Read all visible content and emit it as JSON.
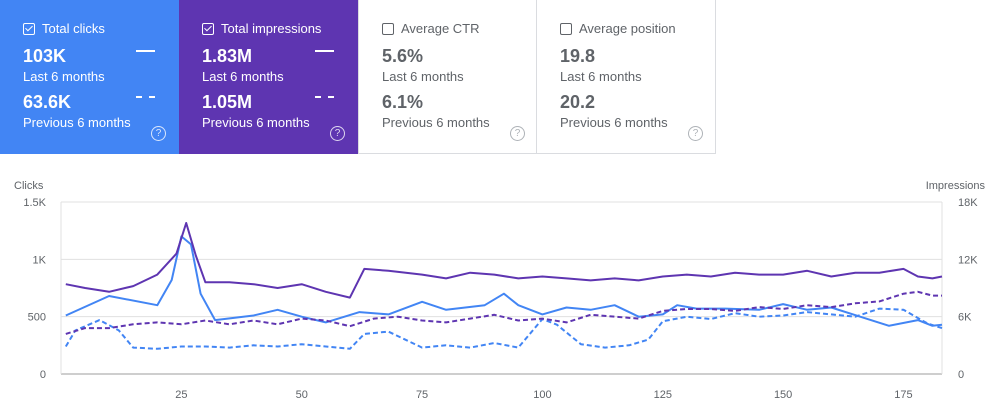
{
  "cards": [
    {
      "label": "Total clicks",
      "checked": true,
      "value1": "103K",
      "sub1": "Last 6 months",
      "value2": "63.6K",
      "sub2": "Previous 6 months",
      "help": "?"
    },
    {
      "label": "Total impressions",
      "checked": true,
      "value1": "1.83M",
      "sub1": "Last 6 months",
      "value2": "1.05M",
      "sub2": "Previous 6 months",
      "help": "?"
    },
    {
      "label": "Average CTR",
      "checked": false,
      "value1": "5.6%",
      "sub1": "Last 6 months",
      "value2": "6.1%",
      "sub2": "Previous 6 months",
      "help": "?"
    },
    {
      "label": "Average position",
      "checked": false,
      "value1": "19.8",
      "sub1": "Last 6 months",
      "value2": "20.2",
      "sub2": "Previous 6 months",
      "help": "?"
    }
  ],
  "colors": {
    "clicks": "#4285f4",
    "impressions": "#5e35b1",
    "grid": "#e0e0e0",
    "axis_text": "#5f6368"
  },
  "chart_data": {
    "type": "line",
    "xlabel": "",
    "left_axis": {
      "label": "Clicks",
      "ticks": [
        "0",
        "500",
        "1K",
        "1.5K"
      ],
      "tick_values": [
        0,
        500,
        1000,
        1500
      ],
      "ylim": [
        0,
        1500
      ]
    },
    "right_axis": {
      "label": "Impressions",
      "ticks": [
        "0",
        "6K",
        "12K",
        "18K"
      ],
      "tick_values": [
        0,
        6000,
        12000,
        18000
      ],
      "ylim": [
        0,
        18000
      ]
    },
    "xlim": [
      0,
      183
    ],
    "x_ticks": [
      25,
      50,
      75,
      100,
      125,
      150,
      175
    ],
    "series": [
      {
        "axis": "left",
        "style": "solid",
        "color": "#4285f4",
        "points": [
          [
            1,
            510
          ],
          [
            10,
            680
          ],
          [
            20,
            600
          ],
          [
            23,
            820
          ],
          [
            25,
            1200
          ],
          [
            27,
            1130
          ],
          [
            29,
            700
          ],
          [
            32,
            470
          ],
          [
            40,
            510
          ],
          [
            45,
            560
          ],
          [
            50,
            500
          ],
          [
            55,
            450
          ],
          [
            62,
            540
          ],
          [
            68,
            520
          ],
          [
            75,
            630
          ],
          [
            80,
            560
          ],
          [
            88,
            600
          ],
          [
            92,
            700
          ],
          [
            95,
            600
          ],
          [
            100,
            520
          ],
          [
            105,
            580
          ],
          [
            110,
            560
          ],
          [
            115,
            600
          ],
          [
            120,
            500
          ],
          [
            125,
            520
          ],
          [
            128,
            600
          ],
          [
            132,
            570
          ],
          [
            138,
            570
          ],
          [
            145,
            560
          ],
          [
            150,
            610
          ],
          [
            155,
            560
          ],
          [
            160,
            580
          ],
          [
            166,
            500
          ],
          [
            172,
            420
          ],
          [
            178,
            470
          ],
          [
            181,
            420
          ],
          [
            183,
            430
          ]
        ]
      },
      {
        "axis": "right",
        "style": "solid",
        "color": "#5e35b1",
        "points": [
          [
            1,
            9400
          ],
          [
            5,
            9000
          ],
          [
            10,
            8600
          ],
          [
            15,
            9200
          ],
          [
            20,
            10400
          ],
          [
            24,
            12600
          ],
          [
            26,
            15800
          ],
          [
            28,
            12400
          ],
          [
            30,
            9600
          ],
          [
            35,
            9600
          ],
          [
            40,
            9400
          ],
          [
            45,
            9000
          ],
          [
            50,
            9400
          ],
          [
            55,
            8600
          ],
          [
            60,
            8000
          ],
          [
            63,
            11000
          ],
          [
            68,
            10800
          ],
          [
            75,
            10400
          ],
          [
            80,
            10000
          ],
          [
            85,
            10600
          ],
          [
            90,
            10400
          ],
          [
            95,
            10000
          ],
          [
            100,
            10200
          ],
          [
            105,
            10000
          ],
          [
            110,
            9800
          ],
          [
            115,
            10000
          ],
          [
            120,
            9800
          ],
          [
            125,
            10200
          ],
          [
            130,
            10400
          ],
          [
            135,
            10200
          ],
          [
            140,
            10600
          ],
          [
            145,
            10400
          ],
          [
            150,
            10400
          ],
          [
            155,
            10800
          ],
          [
            160,
            10200
          ],
          [
            165,
            10600
          ],
          [
            170,
            10600
          ],
          [
            175,
            11000
          ],
          [
            178,
            10200
          ],
          [
            181,
            10000
          ],
          [
            183,
            10200
          ]
        ]
      },
      {
        "axis": "left",
        "style": "dashed",
        "color": "#4285f4",
        "points": [
          [
            1,
            240
          ],
          [
            3,
            380
          ],
          [
            8,
            470
          ],
          [
            12,
            380
          ],
          [
            15,
            230
          ],
          [
            20,
            220
          ],
          [
            25,
            240
          ],
          [
            30,
            240
          ],
          [
            35,
            230
          ],
          [
            40,
            250
          ],
          [
            45,
            240
          ],
          [
            50,
            260
          ],
          [
            55,
            240
          ],
          [
            60,
            220
          ],
          [
            63,
            350
          ],
          [
            68,
            370
          ],
          [
            75,
            230
          ],
          [
            80,
            250
          ],
          [
            85,
            230
          ],
          [
            90,
            270
          ],
          [
            95,
            230
          ],
          [
            100,
            480
          ],
          [
            103,
            430
          ],
          [
            108,
            260
          ],
          [
            113,
            230
          ],
          [
            118,
            250
          ],
          [
            122,
            300
          ],
          [
            125,
            460
          ],
          [
            130,
            500
          ],
          [
            135,
            480
          ],
          [
            140,
            530
          ],
          [
            145,
            500
          ],
          [
            150,
            510
          ],
          [
            155,
            540
          ],
          [
            160,
            520
          ],
          [
            165,
            500
          ],
          [
            170,
            570
          ],
          [
            175,
            560
          ],
          [
            180,
            440
          ],
          [
            183,
            400
          ]
        ]
      },
      {
        "axis": "right",
        "style": "dashed",
        "color": "#5e35b1",
        "points": [
          [
            1,
            4200
          ],
          [
            5,
            4800
          ],
          [
            10,
            4800
          ],
          [
            15,
            5200
          ],
          [
            20,
            5400
          ],
          [
            25,
            5200
          ],
          [
            30,
            5600
          ],
          [
            35,
            5200
          ],
          [
            40,
            5600
          ],
          [
            45,
            5200
          ],
          [
            50,
            5800
          ],
          [
            55,
            5600
          ],
          [
            60,
            5000
          ],
          [
            65,
            5800
          ],
          [
            70,
            6000
          ],
          [
            75,
            5600
          ],
          [
            80,
            5400
          ],
          [
            85,
            5800
          ],
          [
            90,
            6200
          ],
          [
            95,
            5600
          ],
          [
            100,
            5800
          ],
          [
            105,
            5400
          ],
          [
            110,
            6200
          ],
          [
            115,
            6000
          ],
          [
            120,
            5800
          ],
          [
            125,
            6600
          ],
          [
            130,
            6800
          ],
          [
            135,
            6800
          ],
          [
            140,
            6600
          ],
          [
            145,
            7000
          ],
          [
            150,
            6800
          ],
          [
            155,
            7200
          ],
          [
            160,
            7000
          ],
          [
            165,
            7400
          ],
          [
            170,
            7600
          ],
          [
            175,
            8400
          ],
          [
            178,
            8600
          ],
          [
            181,
            8200
          ],
          [
            183,
            8200
          ]
        ]
      }
    ]
  }
}
